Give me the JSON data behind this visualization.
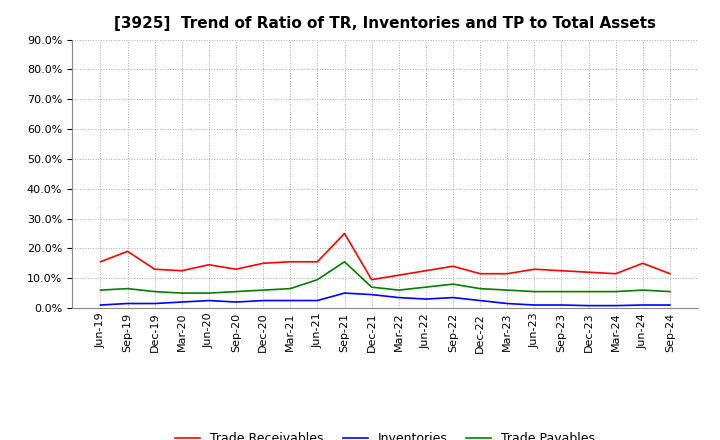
{
  "title": "[3925]  Trend of Ratio of TR, Inventories and TP to Total Assets",
  "x_labels": [
    "Jun-19",
    "Sep-19",
    "Dec-19",
    "Mar-20",
    "Jun-20",
    "Sep-20",
    "Dec-20",
    "Mar-21",
    "Jun-21",
    "Sep-21",
    "Dec-21",
    "Mar-22",
    "Jun-22",
    "Sep-22",
    "Dec-22",
    "Mar-23",
    "Jun-23",
    "Sep-23",
    "Dec-23",
    "Mar-24",
    "Jun-24",
    "Sep-24"
  ],
  "trade_receivables": [
    15.5,
    19.0,
    13.0,
    12.5,
    14.5,
    13.0,
    15.0,
    15.5,
    15.5,
    25.0,
    9.5,
    11.0,
    12.5,
    14.0,
    11.5,
    11.5,
    13.0,
    12.5,
    12.0,
    11.5,
    15.0,
    11.5
  ],
  "inventories": [
    1.0,
    1.5,
    1.5,
    2.0,
    2.5,
    2.0,
    2.5,
    2.5,
    2.5,
    5.0,
    4.5,
    3.5,
    3.0,
    3.5,
    2.5,
    1.5,
    1.0,
    1.0,
    0.8,
    0.8,
    1.0,
    1.0
  ],
  "trade_payables": [
    6.0,
    6.5,
    5.5,
    5.0,
    5.0,
    5.5,
    6.0,
    6.5,
    9.5,
    15.5,
    7.0,
    6.0,
    7.0,
    8.0,
    6.5,
    6.0,
    5.5,
    5.5,
    5.5,
    5.5,
    6.0,
    5.5
  ],
  "ylim": [
    0.0,
    90.0
  ],
  "yticks": [
    0.0,
    10.0,
    20.0,
    30.0,
    40.0,
    50.0,
    60.0,
    70.0,
    80.0,
    90.0
  ],
  "tr_color": "#ff0000",
  "inv_color": "#0000ff",
  "tp_color": "#008000",
  "legend_labels": [
    "Trade Receivables",
    "Inventories",
    "Trade Payables"
  ],
  "background_color": "#ffffff",
  "grid_color": "#aaaaaa",
  "title_fontsize": 11,
  "tick_fontsize": 8,
  "legend_fontsize": 9
}
